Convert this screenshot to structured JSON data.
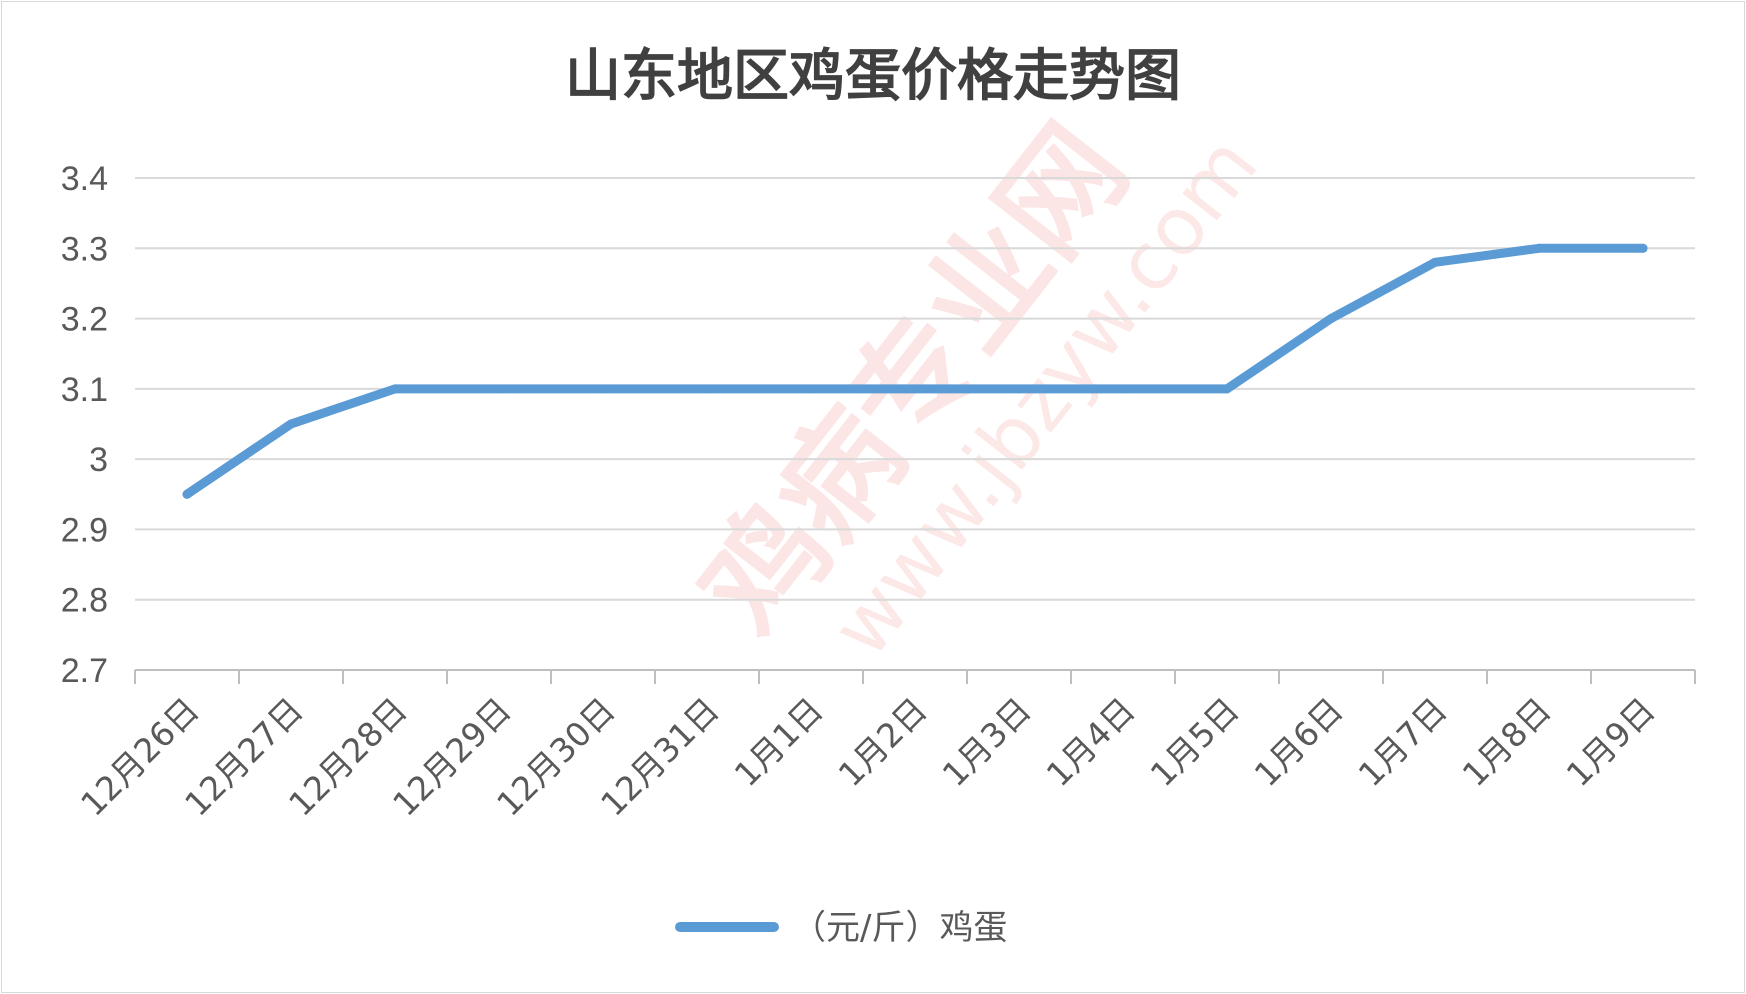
{
  "chart_data": {
    "type": "line",
    "title": "山东地区鸡蛋价格走势图",
    "categories": [
      "12月26日",
      "12月27日",
      "12月28日",
      "12月29日",
      "12月30日",
      "12月31日",
      "1月1日",
      "1月2日",
      "1月3日",
      "1月4日",
      "1月5日",
      "1月6日",
      "1月7日",
      "1月8日",
      "1月9日"
    ],
    "series": [
      {
        "name": "（元/斤）鸡蛋",
        "values": [
          2.95,
          3.05,
          3.1,
          3.1,
          3.1,
          3.1,
          3.1,
          3.1,
          3.1,
          3.1,
          3.1,
          3.2,
          3.28,
          3.3,
          3.3
        ],
        "color": "#5b9bd5"
      }
    ],
    "yticks": [
      "2.7",
      "2.8",
      "2.9",
      "3",
      "3.1",
      "3.2",
      "3.3",
      "3.4"
    ],
    "ylim": [
      2.7,
      3.4
    ],
    "grid": true,
    "legend_position": "bottom",
    "gridline_color": "#d9d9d9",
    "text_color": "#595959"
  },
  "watermark": {
    "brand": "鸡病专业网",
    "url": "www.jbzyw.com"
  }
}
